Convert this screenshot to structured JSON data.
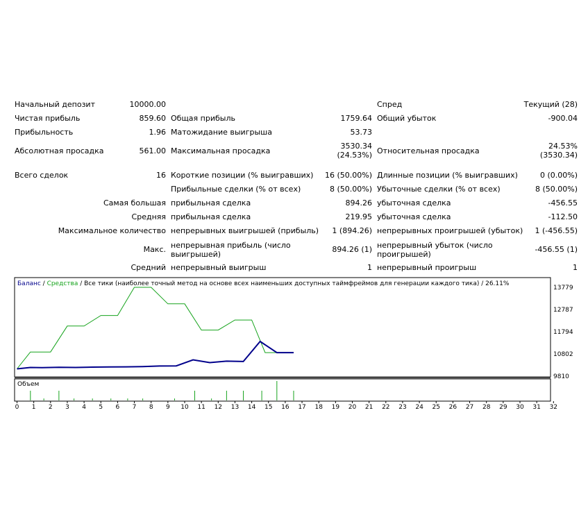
{
  "report": {
    "initial_deposit_label": "Начальный депозит",
    "initial_deposit_value": "10000.00",
    "spread_label": "Спред",
    "spread_value": "Текущий (28)",
    "net_profit_label": "Чистая прибыль",
    "net_profit_value": "859.60",
    "gross_profit_label": "Общая прибыль",
    "gross_profit_value": "1759.64",
    "gross_loss_label": "Общий убыток",
    "gross_loss_value": "-900.04",
    "profit_factor_label": "Прибыльность",
    "profit_factor_value": "1.96",
    "expected_payoff_label": "Матожидание выигрыша",
    "expected_payoff_value": "53.73",
    "abs_drawdown_label": "Абсолютная просадка",
    "abs_drawdown_value": "561.00",
    "max_drawdown_label": "Максимальная просадка",
    "max_drawdown_value_1": "3530.34",
    "max_drawdown_value_2": "(24.53%)",
    "rel_drawdown_label": "Относительная просадка",
    "rel_drawdown_value_1": "24.53%",
    "rel_drawdown_value_2": "(3530.34)",
    "total_trades_label": "Всего сделок",
    "total_trades_value": "16",
    "short_positions_label": "Короткие позиции (% выигравших)",
    "short_positions_value": "16 (50.00%)",
    "long_positions_label": "Длинные позиции (% выигравших)",
    "long_positions_value": "0 (0.00%)",
    "profit_trades_label": "Прибыльные сделки (% от всех)",
    "profit_trades_value": "8 (50.00%)",
    "loss_trades_label": "Убыточные сделки (% от всех)",
    "loss_trades_value": "8 (50.00%)",
    "largest_label": "Самая большая",
    "largest_profit_label": "прибыльная сделка",
    "largest_profit_value": "894.26",
    "largest_loss_label": "убыточная сделка",
    "largest_loss_value": "-456.55",
    "average_label": "Средняя",
    "average_profit_label": "прибыльная сделка",
    "average_profit_value": "219.95",
    "average_loss_label": "убыточная сделка",
    "average_loss_value": "-112.50",
    "max_count_label": "Максимальное количество",
    "max_consec_wins_label": "непрерывных выигрышей (прибыль)",
    "max_consec_wins_value": "1 (894.26)",
    "max_consec_losses_label": "непрерывных проигрышей (убыток)",
    "max_consec_losses_value": "1 (-456.55)",
    "max_label": "Макс.",
    "max_consec_profit_label": "непрерывная прибыль (число выигрышей)",
    "max_consec_profit_value": "894.26 (1)",
    "max_consec_loss_label": "непрерывный убыток (число проигрышей)",
    "max_consec_loss_value": "-456.55 (1)",
    "avg_label": "Средний",
    "avg_consec_wins_label": "непрерывный выигрыш",
    "avg_consec_wins_value": "1",
    "avg_consec_losses_label": "непрерывный проигрыш",
    "avg_consec_losses_value": "1"
  },
  "chart_header": {
    "balance": "Баланс",
    "separator": " / ",
    "equity": "Средства",
    "rest": " / Все тики (наиболее точный метод на основе всех наименьших доступных таймфреймов для генерации каждого тика) / 26.11%"
  },
  "volume_label": "Объем",
  "colors": {
    "balance": "#00008b",
    "equity": "#16a31c",
    "volume": "#16a31c",
    "frame": "#000000"
  },
  "chart_data": {
    "type": "line",
    "title": "",
    "x_ticks": [
      0,
      1,
      2,
      3,
      4,
      5,
      6,
      7,
      8,
      9,
      10,
      11,
      12,
      13,
      14,
      15,
      16,
      17,
      18,
      19,
      20,
      21,
      22,
      23,
      24,
      25,
      26,
      27,
      28,
      29,
      30,
      31,
      32
    ],
    "y_ticks": [
      9810,
      10802,
      11794,
      12787,
      13779
    ],
    "ylim": [
      9810,
      13779
    ],
    "series": [
      {
        "name": "Баланс",
        "x": [
          0,
          0.8,
          1.5,
          2.5,
          3.5,
          4.5,
          5.5,
          6.5,
          7.5,
          8.5,
          9.5,
          10.5,
          11.5,
          12.5,
          13.5,
          14.5,
          15.5,
          16.5
        ],
        "y": [
          10135,
          10198,
          10188,
          10203,
          10197,
          10214,
          10220,
          10225,
          10238,
          10262,
          10270,
          10538,
          10416,
          10479,
          10465,
          11360,
          10860,
          10860
        ]
      },
      {
        "name": "Средства",
        "x": [
          0,
          0.8,
          2,
          3,
          4,
          5,
          6,
          7,
          7.7,
          8,
          9,
          10,
          11,
          12,
          13,
          14,
          14.8,
          15.5,
          16.5
        ],
        "y": [
          10135,
          10890,
          10890,
          12050,
          12050,
          12520,
          12520,
          13779,
          13779,
          13779,
          13040,
          13040,
          11870,
          11870,
          12320,
          12320,
          10860,
          10860,
          10860
        ]
      }
    ],
    "volume": {
      "x": [
        0.8,
        1.6,
        2.5,
        3.4,
        4.5,
        5.6,
        6.6,
        7.5,
        9.4,
        10.6,
        11.6,
        12.5,
        13.5,
        14.6,
        15.5,
        16.5
      ],
      "y": [
        1,
        0.2,
        1,
        0.2,
        0.2,
        0.2,
        0.2,
        0.2,
        0.2,
        1,
        0.2,
        1,
        1,
        1,
        2,
        1
      ]
    }
  }
}
